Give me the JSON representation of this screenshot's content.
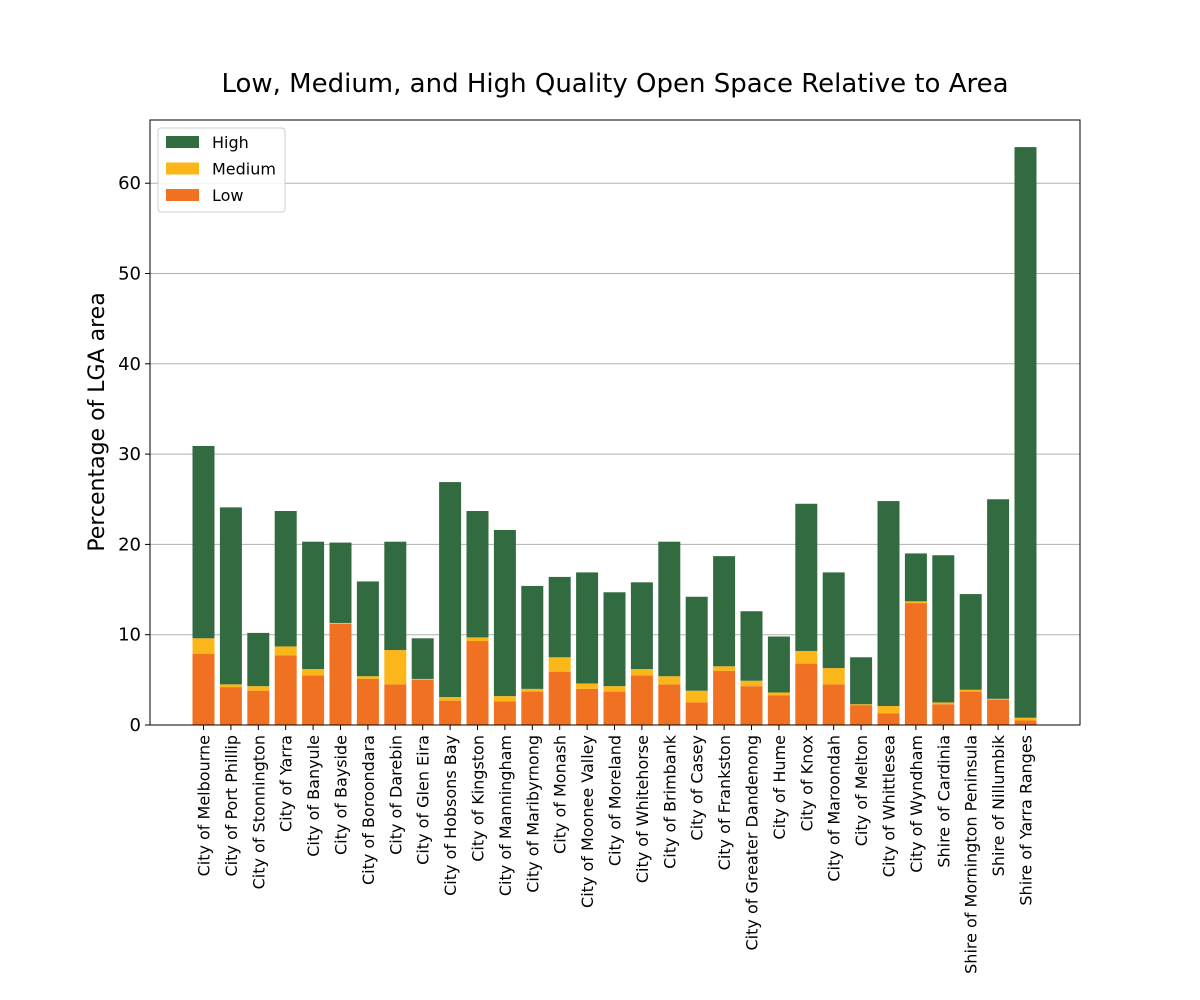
{
  "chart_data": {
    "type": "bar",
    "stacked": true,
    "title": "Low, Medium, and High Quality Open Space Relative to Area",
    "xlabel": "",
    "ylabel": "Percentage of LGA area",
    "ylim": [
      0,
      67
    ],
    "yticks": [
      0,
      10,
      20,
      30,
      40,
      50,
      60
    ],
    "grid": "horizontal",
    "legend": {
      "placement": "top-left",
      "entries": [
        "High",
        "Medium",
        "Low"
      ]
    },
    "categories": [
      "City of Melbourne",
      "City of Port Phillip",
      "City of Stonnington",
      "City of Yarra",
      "City of Banyule",
      "City of Bayside",
      "City of Boroondara",
      "City of Darebin",
      "City of Glen Eira",
      "City of Hobsons Bay",
      "City of Kingston",
      "City of Manningham",
      "City of Maribyrnong",
      "City of Monash",
      "City of Moonee Valley",
      "City of Moreland",
      "City of Whitehorse",
      "City of Brimbank",
      "City of Casey",
      "City of Frankston",
      "City of Greater Dandenong",
      "City of Hume",
      "City of Knox",
      "City of Maroondah",
      "City of Melton",
      "City of Whittlesea",
      "City of Wyndham",
      "Shire of Cardinia",
      "Shire of Mornington Peninsula",
      "Shire of Nillumbik",
      "Shire of Yarra Ranges"
    ],
    "series": [
      {
        "name": "Low",
        "color": "#f07122",
        "values": [
          7.9,
          4.2,
          3.8,
          7.7,
          5.5,
          11.2,
          5.1,
          4.5,
          5.0,
          2.7,
          9.3,
          2.6,
          3.7,
          5.9,
          4.0,
          3.7,
          5.5,
          4.5,
          2.5,
          6.0,
          4.3,
          3.3,
          6.8,
          4.5,
          2.2,
          1.3,
          13.5,
          2.3,
          3.7,
          2.8,
          0.5
        ]
      },
      {
        "name": "Medium",
        "color": "#fbb61a",
        "values": [
          1.7,
          0.3,
          0.5,
          1.0,
          0.7,
          0.1,
          0.3,
          3.8,
          0.1,
          0.4,
          0.4,
          0.6,
          0.3,
          1.6,
          0.6,
          0.6,
          0.7,
          0.9,
          1.3,
          0.5,
          0.6,
          0.3,
          1.4,
          1.8,
          0.1,
          0.8,
          0.2,
          0.2,
          0.2,
          0.1,
          0.3
        ]
      },
      {
        "name": "High",
        "color": "#336b41",
        "values": [
          21.3,
          19.6,
          5.9,
          15.0,
          14.1,
          8.9,
          10.5,
          12.0,
          4.5,
          23.8,
          14.0,
          18.4,
          11.4,
          8.9,
          12.3,
          10.4,
          9.6,
          14.9,
          10.4,
          12.2,
          7.7,
          6.2,
          16.3,
          10.6,
          5.2,
          22.7,
          5.3,
          16.3,
          10.6,
          22.1,
          63.2
        ]
      }
    ]
  }
}
